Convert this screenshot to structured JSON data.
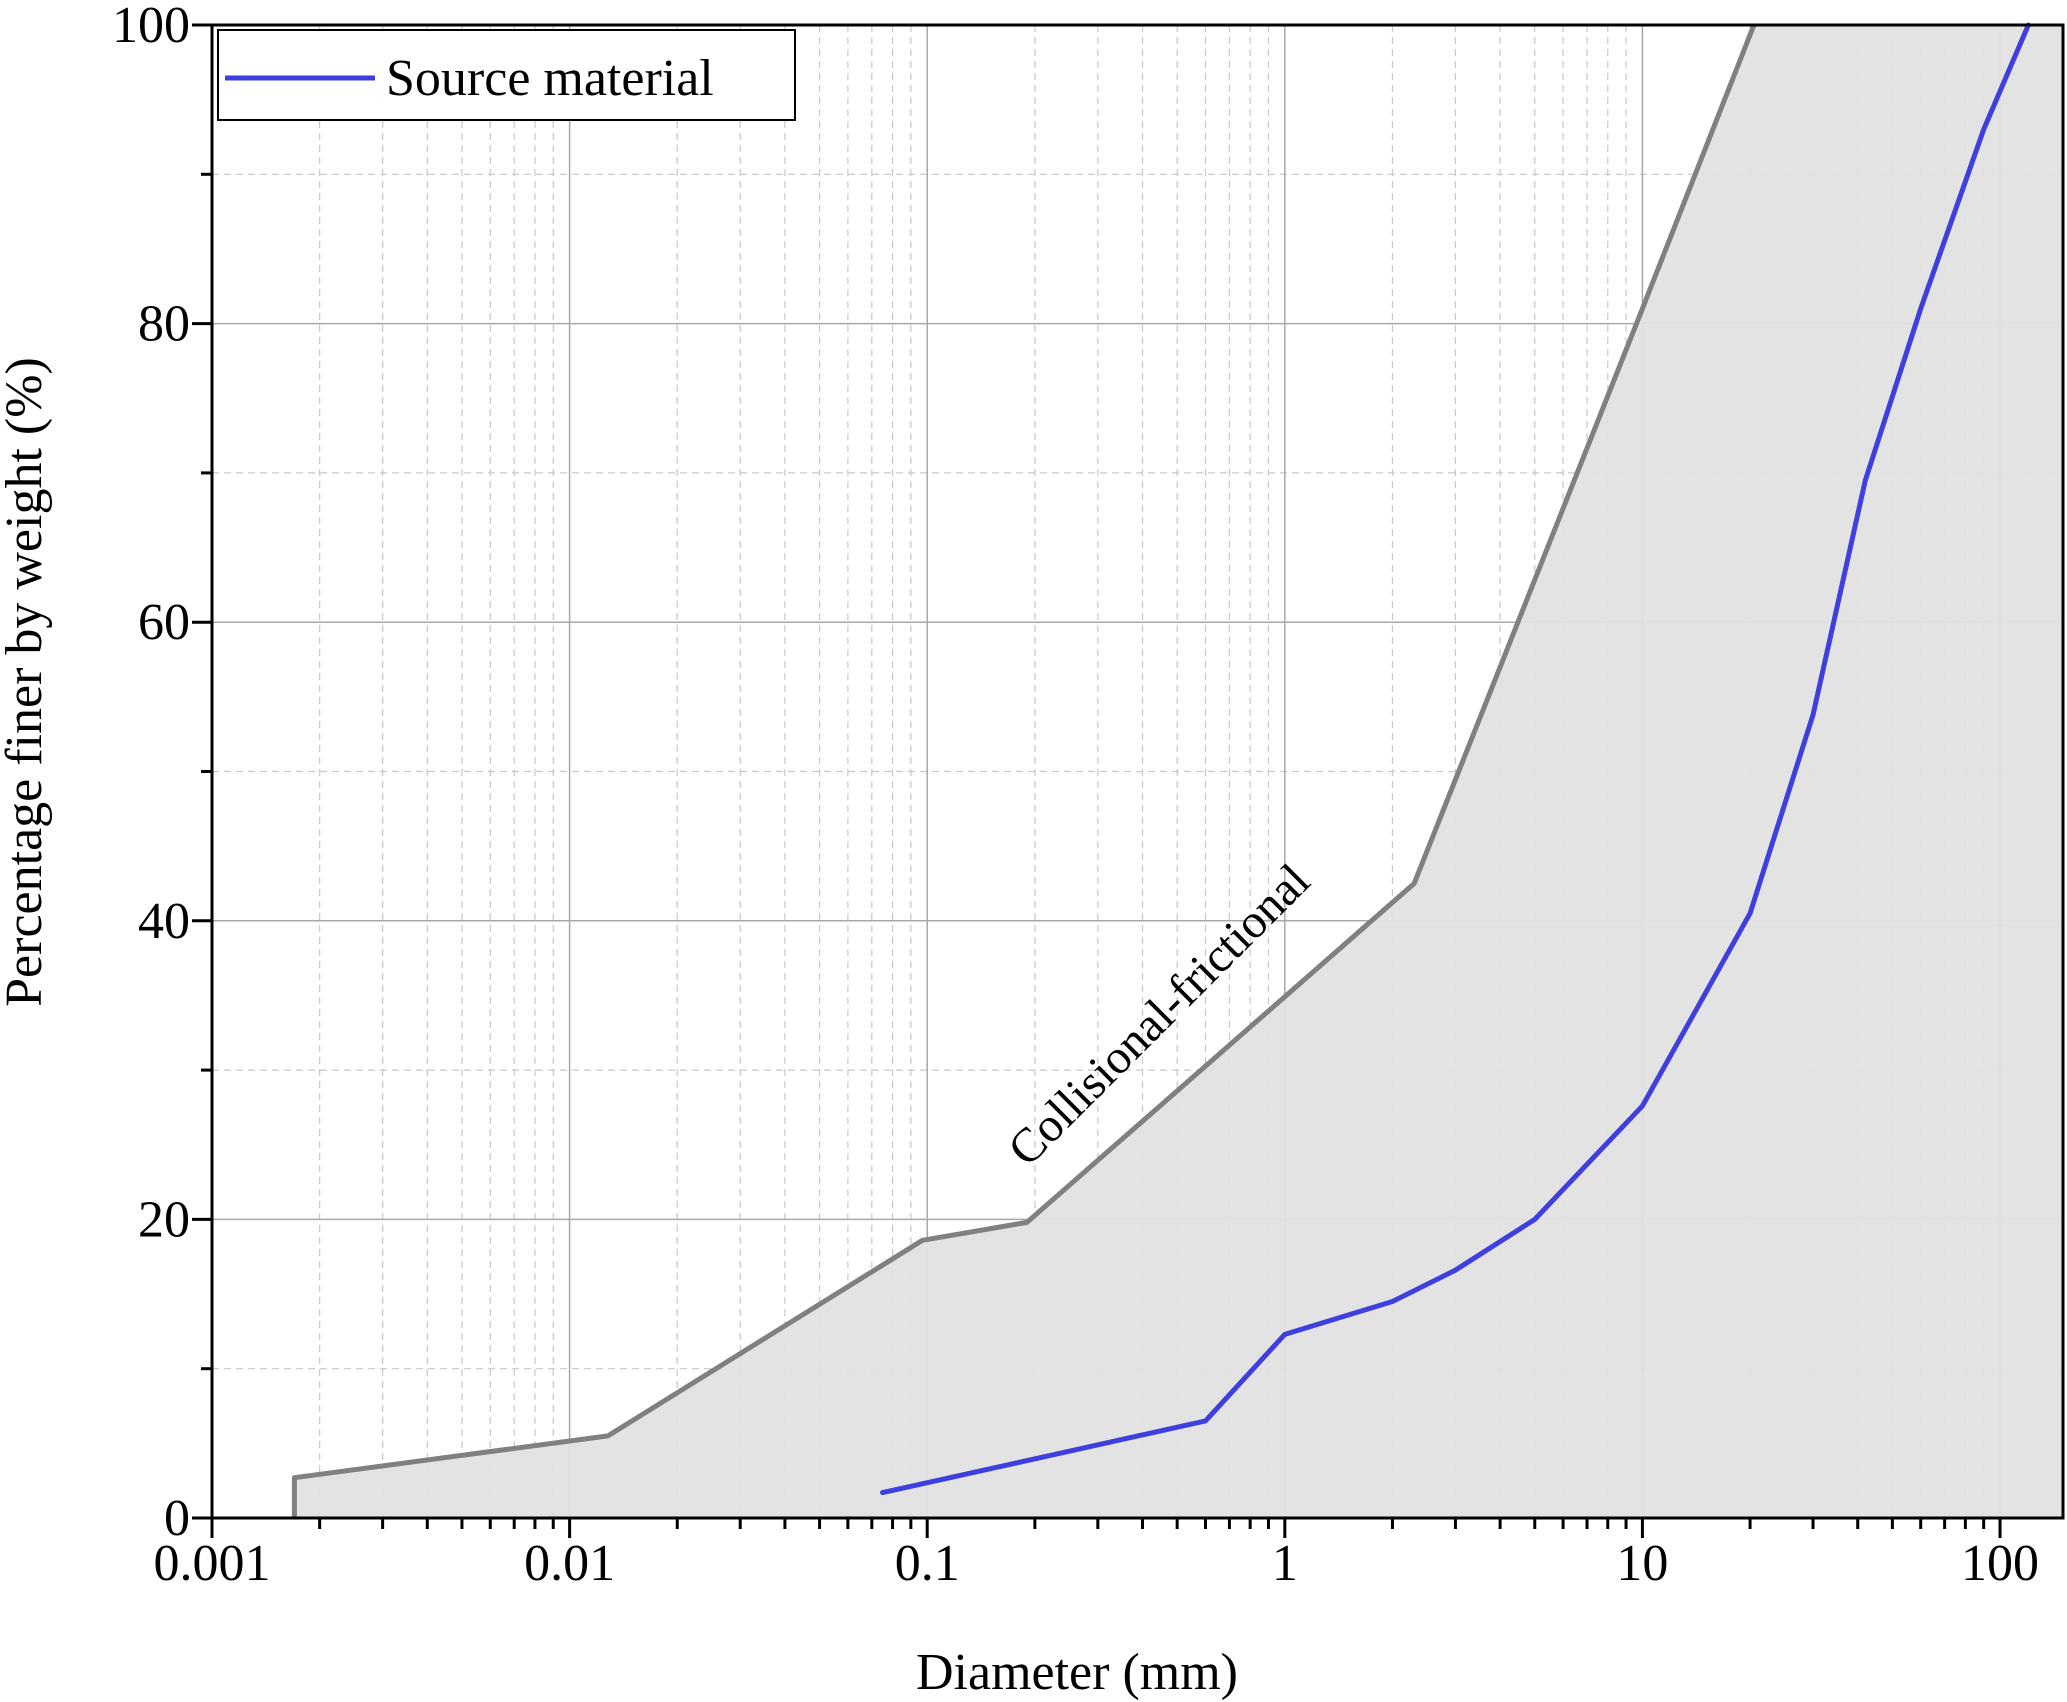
{
  "chart_data": {
    "type": "line",
    "title": "",
    "xlabel": "Diameter (mm)",
    "ylabel": "Percentage finer by weight (%)",
    "x_scale": "log",
    "xlim": [
      0.001,
      150
    ],
    "ylim": [
      0,
      100
    ],
    "x_ticks": [
      {
        "value": 0.001,
        "label": "0.001"
      },
      {
        "value": 0.01,
        "label": "0.01"
      },
      {
        "value": 0.1,
        "label": "0.1"
      },
      {
        "value": 1,
        "label": "1"
      },
      {
        "value": 10,
        "label": "10"
      },
      {
        "value": 100,
        "label": "100"
      }
    ],
    "y_ticks": [
      {
        "value": 0,
        "label": "0"
      },
      {
        "value": 20,
        "label": "20"
      },
      {
        "value": 40,
        "label": "40"
      },
      {
        "value": 60,
        "label": "60"
      },
      {
        "value": 80,
        "label": "80"
      },
      {
        "value": 100,
        "label": "100"
      }
    ],
    "grid": true,
    "legend_position": "top-left",
    "series": [
      {
        "name": "Source material",
        "color": "#3f3fe0",
        "x": [
          0.075,
          0.6,
          1.0,
          2.0,
          3.0,
          5.0,
          10.0,
          20.0,
          30.0,
          42.0,
          60.0,
          90.0,
          120.0
        ],
        "y": [
          1.7,
          6.5,
          12.3,
          14.5,
          16.6,
          20.0,
          27.6,
          40.5,
          53.8,
          69.5,
          81.0,
          93.0,
          100.0
        ]
      }
    ],
    "envelope": {
      "label": "Collisional-frictional",
      "label_color": "#ff0000",
      "line_color": "#808080",
      "fill_color": "#e1e1e1",
      "x": [
        0.0017,
        0.0017,
        0.0128,
        0.097,
        0.19,
        2.3,
        10.0,
        20.5
      ],
      "y": [
        0,
        2.7,
        5.5,
        18.6,
        19.8,
        42.5,
        81.0,
        100.0
      ]
    }
  }
}
